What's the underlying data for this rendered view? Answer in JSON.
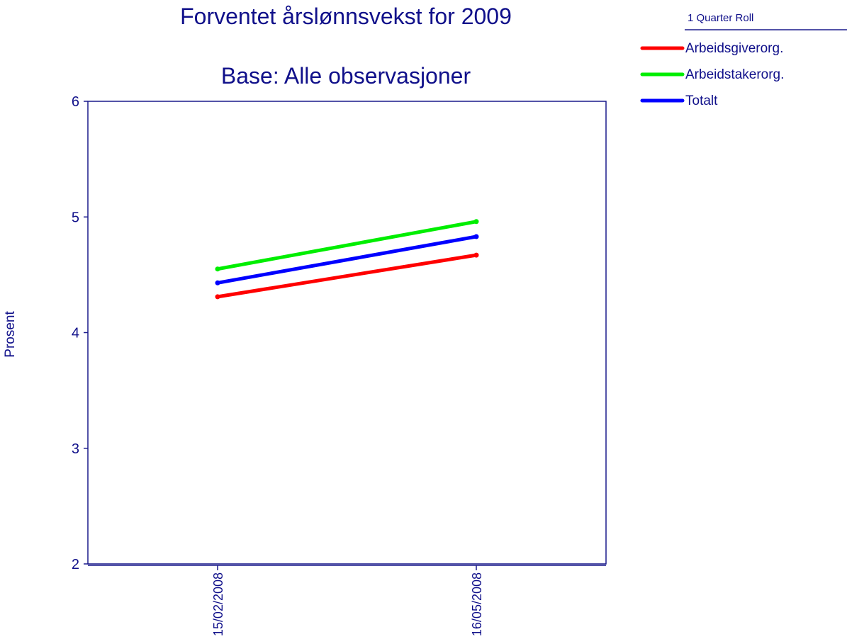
{
  "chart_data": {
    "type": "line",
    "title": "Forventet årslønnsvekst for 2009",
    "subtitle": "Base: Alle observasjoner",
    "ylabel": "Prosent",
    "xlabel": "",
    "x": [
      "15/02/2008",
      "16/05/2008"
    ],
    "ylim": [
      2,
      6
    ],
    "yticks": [
      "2",
      "3",
      "4",
      "5",
      "6"
    ],
    "grid": false,
    "legend": {
      "title": "1 Quarter Roll",
      "placement": "top-right"
    },
    "series": [
      {
        "name": "Arbeidsgiverorg.",
        "color": "#ff0000",
        "values": [
          4.31,
          4.67
        ]
      },
      {
        "name": "Arbeidstakerorg.",
        "color": "#00ee00",
        "values": [
          4.55,
          4.96
        ]
      },
      {
        "name": "Totalt",
        "color": "#0000ff",
        "values": [
          4.43,
          4.83
        ]
      }
    ]
  }
}
